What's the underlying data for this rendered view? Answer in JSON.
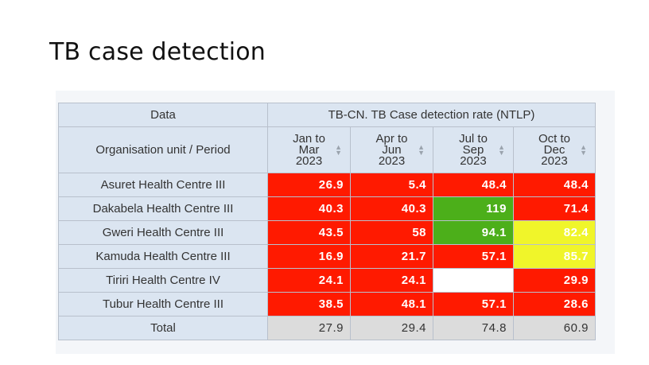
{
  "slide": {
    "title": "TB case detection"
  },
  "table": {
    "data_header": "Data",
    "indicator_header": "TB-CN. TB Case detection rate (NTLP)",
    "row_header": "Organisation unit / Period",
    "periods": [
      {
        "line1": "Jan to",
        "line2": "Mar",
        "line3": "2023"
      },
      {
        "line1": "Apr to",
        "line2": "Jun",
        "line3": "2023"
      },
      {
        "line1": "Jul to",
        "line2": "Sep",
        "line3": "2023"
      },
      {
        "line1": "Oct to",
        "line2": "Dec",
        "line3": "2023"
      }
    ],
    "rows": [
      {
        "name": "Asuret Health Centre III",
        "values": [
          "26.9",
          "5.4",
          "48.4",
          "48.4"
        ]
      },
      {
        "name": "Dakabela Health Centre III",
        "values": [
          "40.3",
          "40.3",
          "119",
          "71.4"
        ]
      },
      {
        "name": "Gweri Health Centre III",
        "values": [
          "43.5",
          "58",
          "94.1",
          "82.4"
        ]
      },
      {
        "name": "Kamuda Health Centre III",
        "values": [
          "16.9",
          "21.7",
          "57.1",
          "85.7"
        ]
      },
      {
        "name": "Tiriri Health Centre IV",
        "values": [
          "24.1",
          "24.1",
          "",
          "29.9"
        ]
      },
      {
        "name": "Tubur Health Centre III",
        "values": [
          "38.5",
          "48.1",
          "57.1",
          "28.6"
        ]
      }
    ],
    "total": {
      "label": "Total",
      "values": [
        "27.9",
        "29.4",
        "74.8",
        "60.9"
      ]
    },
    "colors": {
      "red": "#ff1a00",
      "green": "#4caf1a",
      "yellow": "#f0f52a",
      "header": "#dbe5f1",
      "total": "#dcdcdc"
    }
  }
}
